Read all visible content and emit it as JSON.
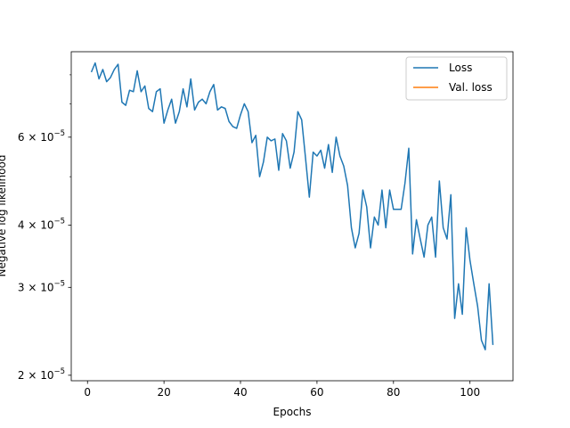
{
  "chart_data": {
    "type": "line",
    "xlabel": "Epochs",
    "ylabel": "Negative log likelihood",
    "yscale": "log",
    "xlim": [
      -4.25,
      111.25
    ],
    "ylim": [
      1.95e-05,
      8.9e-05
    ],
    "grid": false,
    "legend_position": "top-right",
    "x_ticks": [
      {
        "value": 0,
        "label": "0"
      },
      {
        "value": 20,
        "label": "20"
      },
      {
        "value": 40,
        "label": "40"
      },
      {
        "value": 60,
        "label": "60"
      },
      {
        "value": 80,
        "label": "80"
      },
      {
        "value": 100,
        "label": "100"
      }
    ],
    "y_ticks": [
      {
        "value": 2e-05,
        "label": "2 × 10",
        "exp": "−5"
      },
      {
        "value": 3e-05,
        "label": "3 × 10",
        "exp": "−5"
      },
      {
        "value": 4e-05,
        "label": "4 × 10",
        "exp": "−5"
      },
      {
        "value": 6e-05,
        "label": "6 × 10",
        "exp": "−5"
      }
    ],
    "series": [
      {
        "name": "Loss",
        "color": "#1f77b4",
        "x": [
          1,
          2,
          3,
          4,
          5,
          6,
          7,
          8,
          9,
          10,
          11,
          12,
          13,
          14,
          15,
          16,
          17,
          18,
          19,
          20,
          21,
          22,
          23,
          24,
          25,
          26,
          27,
          28,
          29,
          30,
          31,
          32,
          33,
          34,
          35,
          36,
          37,
          38,
          39,
          40,
          41,
          42,
          43,
          44,
          45,
          46,
          47,
          48,
          49,
          50,
          51,
          52,
          53,
          54,
          55,
          56,
          57,
          58,
          59,
          60,
          61,
          62,
          63,
          64,
          65,
          66,
          67,
          68,
          69,
          70,
          71,
          72,
          73,
          74,
          75,
          76,
          77,
          78,
          79,
          80,
          81,
          82,
          83,
          84,
          85,
          86,
          87,
          88,
          89,
          90,
          91,
          92,
          93,
          94,
          95,
          96,
          97,
          98,
          99,
          100,
          101,
          102,
          103,
          104,
          105,
          106
        ],
        "values": [
          8.1e-05,
          8.45e-05,
          7.85e-05,
          8.2e-05,
          7.75e-05,
          7.9e-05,
          8.2e-05,
          8.4e-05,
          7.05e-05,
          6.95e-05,
          7.45e-05,
          7.4e-05,
          8.15e-05,
          7.4e-05,
          7.6e-05,
          6.85e-05,
          6.75e-05,
          7.4e-05,
          7.5e-05,
          6.4e-05,
          6.8e-05,
          7.15e-05,
          6.4e-05,
          6.75e-05,
          7.5e-05,
          6.9e-05,
          7.85e-05,
          6.8e-05,
          7.05e-05,
          7.15e-05,
          7e-05,
          7.4e-05,
          7.65e-05,
          6.8e-05,
          6.9e-05,
          6.85e-05,
          6.45e-05,
          6.3e-05,
          6.25e-05,
          6.65e-05,
          7e-05,
          6.75e-05,
          5.85e-05,
          6.05e-05,
          5e-05,
          5.35e-05,
          6e-05,
          5.9e-05,
          5.95e-05,
          5.15e-05,
          6.1e-05,
          5.9e-05,
          5.2e-05,
          5.6e-05,
          6.75e-05,
          6.5e-05,
          5.45e-05,
          4.55e-05,
          5.6e-05,
          5.5e-05,
          5.65e-05,
          5.2e-05,
          5.8e-05,
          5.1e-05,
          6e-05,
          5.5e-05,
          5.25e-05,
          4.8e-05,
          3.95e-05,
          3.6e-05,
          3.85e-05,
          4.7e-05,
          4.35e-05,
          3.6e-05,
          4.15e-05,
          4e-05,
          4.7e-05,
          3.95e-05,
          4.7e-05,
          4.3e-05,
          4.3e-05,
          4.3e-05,
          4.85e-05,
          5.7e-05,
          3.5e-05,
          4.1e-05,
          3.75e-05,
          3.45e-05,
          4e-05,
          4.15e-05,
          3.45e-05,
          4.9e-05,
          3.95e-05,
          3.75e-05,
          4.6e-05,
          2.6e-05,
          3.05e-05,
          2.65e-05,
          3.95e-05,
          3.4e-05,
          3.05e-05,
          2.75e-05,
          2.35e-05,
          2.25e-05,
          3.05e-05,
          2.3e-05
        ]
      },
      {
        "name": "Val. loss",
        "color": "#ff7f0e",
        "x": [],
        "values": []
      }
    ]
  }
}
